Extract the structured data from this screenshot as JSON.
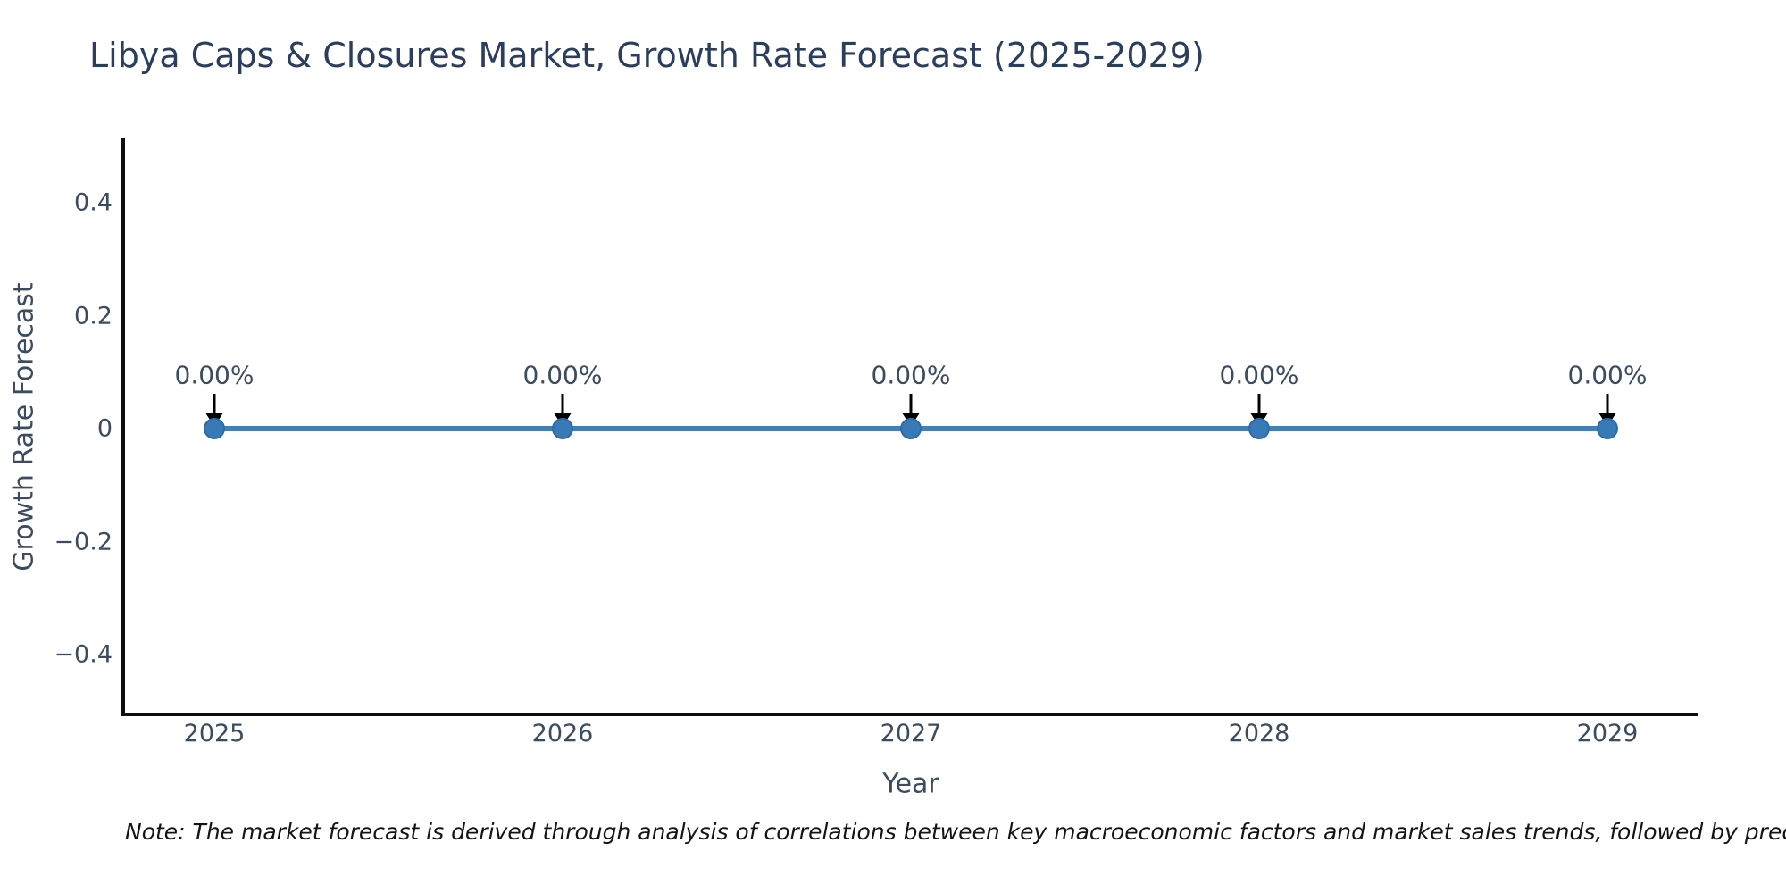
{
  "title": "Libya Caps & Closures Market, Growth Rate Forecast (2025-2029)",
  "note": "Note: The market forecast is derived through analysis of correlations between key macroeconomic factors and market sales trends, followed by predictive modeling to project future sa",
  "colors": {
    "title_text": "#2c3e5d",
    "axis_text": "#3c4c60",
    "axis_line": "#0d0d0d",
    "line": "#4580b4",
    "marker": "#3879b8",
    "marker_edge": "#2e6ca6",
    "arrow": "#000000",
    "background": "#ffffff",
    "note_text": "#141414"
  },
  "chart_data": {
    "type": "line",
    "title": "Libya Caps & Closures Market, Growth Rate Forecast (2025-2029)",
    "xlabel": "Year",
    "ylabel": "Growth Rate Forecast",
    "x": [
      2025,
      2026,
      2027,
      2028,
      2029
    ],
    "values": [
      0,
      0,
      0,
      0,
      0
    ],
    "point_labels": [
      "0.00%",
      "0.00%",
      "0.00%",
      "0.00%",
      "0.00%"
    ],
    "xtick_labels": [
      "2025",
      "2026",
      "2027",
      "2028",
      "2029"
    ],
    "yticks": [
      0.4,
      0.2,
      0,
      -0.2,
      -0.4
    ],
    "ytick_labels": [
      "0.4",
      "0.2",
      "0",
      "−0.2",
      "−0.4"
    ],
    "ylim": [
      -0.52,
      0.51
    ],
    "grid": false,
    "legend_position": "none",
    "annotation_style": "down-arrow"
  }
}
